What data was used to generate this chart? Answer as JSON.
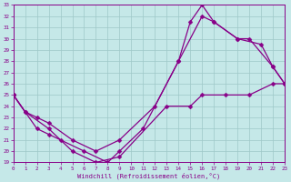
{
  "xlabel": "Windchill (Refroidissement éolien,°C)",
  "bg_color": "#c5e8e8",
  "grid_color": "#9ec8c8",
  "line_color": "#880088",
  "xlim": [
    0,
    23
  ],
  "ylim": [
    19,
    33
  ],
  "xticks": [
    0,
    1,
    2,
    3,
    4,
    5,
    6,
    7,
    8,
    9,
    10,
    11,
    12,
    13,
    14,
    15,
    16,
    17,
    18,
    19,
    20,
    21,
    22,
    23
  ],
  "yticks": [
    19,
    20,
    21,
    22,
    23,
    24,
    25,
    26,
    27,
    28,
    29,
    30,
    31,
    32,
    33
  ],
  "line1_x": [
    0,
    1,
    3,
    5,
    7,
    9,
    13,
    15,
    16,
    18,
    20,
    22,
    23
  ],
  "line1_y": [
    25,
    23.5,
    22,
    20,
    19,
    19.5,
    24,
    24,
    25,
    25,
    25,
    26,
    26
  ],
  "line2_x": [
    0,
    2,
    3,
    4,
    6,
    8,
    9,
    11,
    14,
    15,
    16,
    17,
    19,
    21,
    22,
    23
  ],
  "line2_y": [
    25,
    22,
    21.5,
    21,
    20,
    19,
    20,
    22,
    28,
    31.5,
    33,
    31.5,
    30,
    29.5,
    27.5,
    26
  ],
  "line3_x": [
    0,
    1,
    2,
    3,
    5,
    7,
    9,
    12,
    14,
    16,
    17,
    19,
    20,
    22,
    23
  ],
  "line3_y": [
    25,
    23.5,
    23,
    22.5,
    21,
    20,
    21,
    24,
    28,
    32,
    31.5,
    30,
    30,
    27.5,
    26
  ]
}
